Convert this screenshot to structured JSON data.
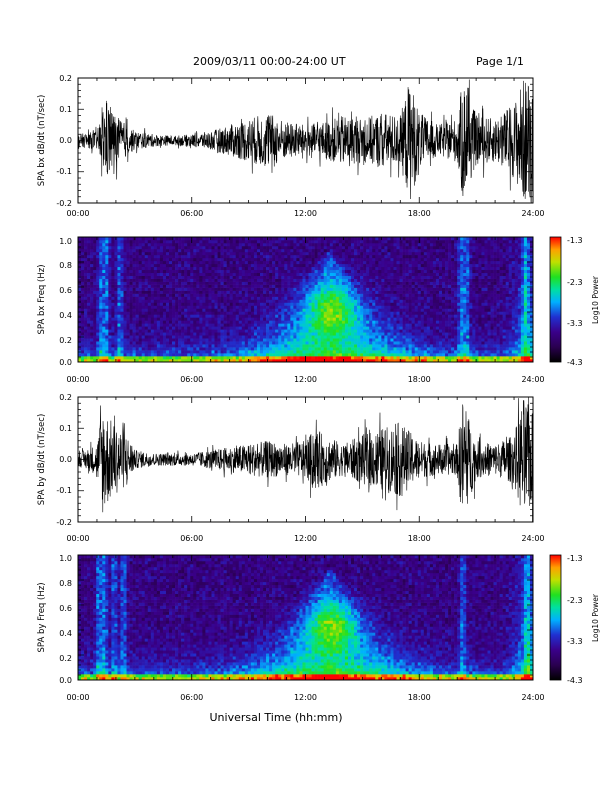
{
  "header": {
    "date_range": "2009/03/11  00:00-24:00 UT",
    "page": "Page 1/1"
  },
  "colors": {
    "trace": "#000000",
    "colormap": [
      "#000000",
      "#2a0050",
      "#3a008a",
      "#2030d0",
      "#00b0ff",
      "#00e0a0",
      "#20e020",
      "#c0e000",
      "#ffa000",
      "#ff0000"
    ]
  },
  "chart_data": [
    {
      "type": "line",
      "ylabel": "SPA bx dB/dt (nT/sec)",
      "xlabel": "",
      "x_ticks": [
        "00:00",
        "06:00",
        "12:00",
        "18:00",
        "24:00"
      ],
      "y_ticks": [
        "0.2",
        "0.1",
        "0.0",
        "-0.1",
        "-0.2"
      ],
      "ylim": [
        -0.2,
        0.2
      ],
      "xlim_hours": [
        0,
        24
      ],
      "envelope": {
        "hours": [
          0,
          1,
          1.5,
          2,
          3,
          4,
          5,
          6,
          7,
          8,
          9,
          10,
          11,
          12,
          13,
          14,
          15,
          16,
          17,
          17.5,
          18,
          19,
          20,
          20.3,
          21,
          22,
          23,
          23.5,
          24
        ],
        "amplitude": [
          0.02,
          0.03,
          0.13,
          0.08,
          0.03,
          0.02,
          0.015,
          0.02,
          0.03,
          0.05,
          0.07,
          0.09,
          0.06,
          0.05,
          0.06,
          0.08,
          0.07,
          0.09,
          0.08,
          0.2,
          0.09,
          0.05,
          0.07,
          0.2,
          0.08,
          0.07,
          0.12,
          0.2,
          0.2
        ]
      }
    },
    {
      "type": "heatmap",
      "ylabel": "SPA bx Freq (Hz)",
      "xlabel": "",
      "x_ticks": [
        "00:00",
        "06:00",
        "12:00",
        "18:00",
        "24:00"
      ],
      "y_ticks": [
        "1.0",
        "0.8",
        "0.6",
        "0.4",
        "0.2",
        "0.0"
      ],
      "ylim": [
        0,
        1.0
      ],
      "colorbar_label": "Log10 Power",
      "colorbar_ticks": [
        "-1.3",
        "-2.3",
        "-3.3",
        "-4.3"
      ],
      "clim": [
        -4.3,
        -1.3
      ]
    },
    {
      "type": "line",
      "ylabel": "SPA by dB/dt (nT/sec)",
      "xlabel": "",
      "x_ticks": [
        "00:00",
        "06:00",
        "12:00",
        "18:00",
        "24:00"
      ],
      "y_ticks": [
        "0.2",
        "0.1",
        "0.0",
        "-0.1",
        "-0.2"
      ],
      "ylim": [
        -0.2,
        0.2
      ],
      "xlim_hours": [
        0,
        24
      ],
      "envelope": {
        "hours": [
          0,
          1,
          1.3,
          1.8,
          2.5,
          3,
          4,
          5,
          6,
          7,
          8,
          9,
          10,
          11,
          12,
          12.5,
          13,
          14,
          15,
          16,
          17,
          18,
          19,
          20,
          20.3,
          21,
          22,
          23,
          23.5,
          24
        ],
        "amplitude": [
          0.02,
          0.05,
          0.18,
          0.12,
          0.09,
          0.03,
          0.02,
          0.02,
          0.02,
          0.03,
          0.04,
          0.05,
          0.06,
          0.05,
          0.06,
          0.1,
          0.08,
          0.05,
          0.08,
          0.1,
          0.12,
          0.06,
          0.05,
          0.05,
          0.2,
          0.06,
          0.05,
          0.08,
          0.2,
          0.15
        ]
      }
    },
    {
      "type": "heatmap",
      "ylabel": "SPA by Freq (Hz)",
      "xlabel": "Universal Time (hh:mm)",
      "x_ticks": [
        "00:00",
        "06:00",
        "12:00",
        "18:00",
        "24:00"
      ],
      "y_ticks": [
        "1.0",
        "0.8",
        "0.6",
        "0.4",
        "0.2",
        "0.0"
      ],
      "ylim": [
        0,
        1.0
      ],
      "colorbar_label": "Log10 Power",
      "colorbar_ticks": [
        "-1.3",
        "-2.3",
        "-3.3",
        "-4.3"
      ],
      "clim": [
        -4.3,
        -1.3
      ]
    }
  ]
}
